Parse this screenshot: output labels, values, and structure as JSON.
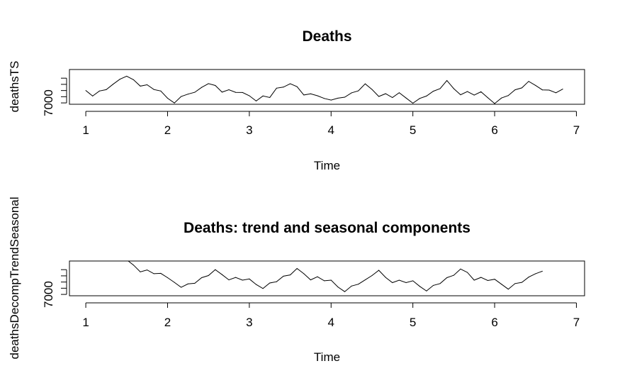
{
  "chart_data": [
    {
      "type": "line",
      "title": "Deaths",
      "xlabel": "Time",
      "ylabel": "deathsTS",
      "xlim": [
        0.8,
        7.1
      ],
      "ylim": [
        6780,
        12400
      ],
      "x_ticks": [
        "1",
        "2",
        "3",
        "4",
        "5",
        "6",
        "7"
      ],
      "y_ticks": [
        7000,
        8000,
        9000,
        10000,
        11000
      ],
      "y_tick_labels": [
        "7000",
        "",
        "",
        "",
        ""
      ],
      "grid": false,
      "series": [
        {
          "x_start": 1,
          "x_step": 0.0833333,
          "values": [
            9007,
            8106,
            8928,
            9137,
            10017,
            10826,
            11317,
            10744,
            9713,
            9938,
            9161,
            8927,
            7750,
            6981,
            8038,
            8422,
            8714,
            9512,
            10120,
            9823,
            8743,
            9129,
            8710,
            8680,
            8162,
            7306,
            8124,
            7870,
            9387,
            9556,
            10093,
            9620,
            8285,
            8466,
            8160,
            7717,
            7461,
            7767,
            7925,
            8623,
            8945,
            10078,
            9179,
            8037,
            8488,
            7874,
            8647,
            7792,
            6957,
            7726,
            8106,
            8890,
            9299,
            10625,
            9302,
            8314,
            8850,
            8265,
            8796,
            7836,
            6892,
            7791,
            8192,
            9115,
            9434,
            10484,
            9827,
            9110,
            9070,
            8633,
            9240
          ]
        }
      ]
    },
    {
      "type": "line",
      "title": "Deaths: trend and seasonal components",
      "xlabel": "Time",
      "ylabel": "deathsDecompTrendSeasonal",
      "xlim": [
        0.8,
        7.1
      ],
      "ylim": [
        6780,
        12400
      ],
      "x_ticks": [
        "1",
        "2",
        "3",
        "4",
        "5",
        "6",
        "7"
      ],
      "y_ticks": [
        7000,
        8000,
        9000,
        10000,
        11000
      ],
      "y_tick_labels": [
        "7000",
        "",
        "",
        "",
        ""
      ],
      "grid": false,
      "series": [
        {
          "x_start": 1.5,
          "x_step": 0.0833333,
          "values": [
            12600,
            11750,
            10650,
            10950,
            10350,
            10400,
            9700,
            8950,
            8150,
            8700,
            8800,
            9700,
            10050,
            11000,
            10200,
            9350,
            9750,
            9300,
            9500,
            8600,
            7950,
            8850,
            9050,
            9950,
            10150,
            11200,
            10350,
            9350,
            9850,
            9200,
            9300,
            8200,
            7450,
            8350,
            8650,
            9350,
            10050,
            10900,
            9750,
            8900,
            9300,
            8900,
            9200,
            8300,
            7550,
            8450,
            8750,
            9700,
            10100,
            11100,
            10550,
            9300,
            9750,
            9250,
            9450,
            8650,
            7850,
            8750,
            8950,
            9800,
            10350,
            10750
          ]
        }
      ]
    }
  ]
}
